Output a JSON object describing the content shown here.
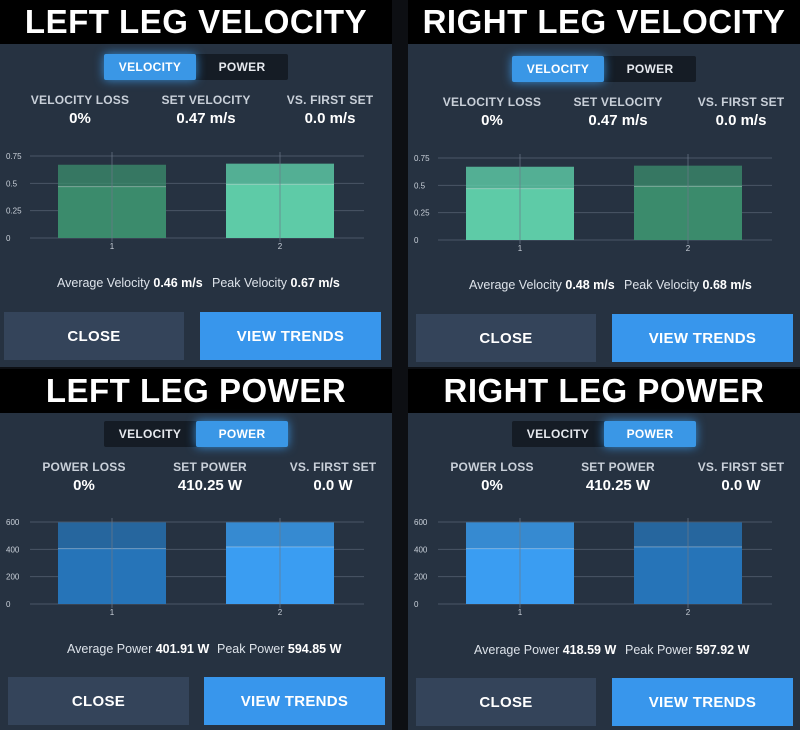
{
  "colors": {
    "panel_bg": "#263241",
    "header_bg": "#000000",
    "accent_blue": "#3a97e6",
    "velocity_bar": "#5ecba7",
    "velocity_bar_dim": "#3b8b6c",
    "power_bar": "#3a9df2",
    "power_bar_dim": "#2674b8"
  },
  "panels": [
    {
      "title": "LEFT LEG VELOCITY",
      "toggle": {
        "velocity": "VELOCITY",
        "power": "POWER",
        "active": "velocity"
      },
      "stats": [
        {
          "label": "VELOCITY LOSS",
          "value": "0%"
        },
        {
          "label": "SET VELOCITY",
          "value": "0.47 m/s"
        },
        {
          "label": "VS. FIRST SET",
          "value": "0.0 m/s"
        }
      ],
      "summary": {
        "avg_label": "Average Velocity",
        "avg_value": "0.46 m/s",
        "peak_label": "Peak Velocity",
        "peak_value": "0.67 m/s"
      },
      "buttons": {
        "close": "CLOSE",
        "trends": "VIEW TRENDS"
      }
    },
    {
      "title": "RIGHT LEG VELOCITY",
      "toggle": {
        "velocity": "VELOCITY",
        "power": "POWER",
        "active": "velocity"
      },
      "stats": [
        {
          "label": "VELOCITY LOSS",
          "value": "0%"
        },
        {
          "label": "SET VELOCITY",
          "value": "0.47 m/s"
        },
        {
          "label": "VS. FIRST SET",
          "value": "0.0 m/s"
        }
      ],
      "summary": {
        "avg_label": "Average Velocity",
        "avg_value": "0.48 m/s",
        "peak_label": "Peak Velocity",
        "peak_value": "0.68 m/s"
      },
      "buttons": {
        "close": "CLOSE",
        "trends": "VIEW TRENDS"
      }
    },
    {
      "title": "LEFT LEG POWER",
      "toggle": {
        "velocity": "VELOCITY",
        "power": "POWER",
        "active": "power"
      },
      "stats": [
        {
          "label": "POWER LOSS",
          "value": "0%"
        },
        {
          "label": "SET POWER",
          "value": "410.25 W"
        },
        {
          "label": "VS. FIRST SET",
          "value": "0.0 W"
        }
      ],
      "summary": {
        "avg_label": "Average Power",
        "avg_value": "401.91 W",
        "peak_label": "Peak Power",
        "peak_value": "594.85 W"
      },
      "buttons": {
        "close": "CLOSE",
        "trends": "VIEW TRENDS"
      }
    },
    {
      "title": "RIGHT LEG POWER",
      "toggle": {
        "velocity": "VELOCITY",
        "power": "POWER",
        "active": "power"
      },
      "stats": [
        {
          "label": "POWER LOSS",
          "value": "0%"
        },
        {
          "label": "SET POWER",
          "value": "410.25 W"
        },
        {
          "label": "VS. FIRST SET",
          "value": "0.0 W"
        }
      ],
      "summary": {
        "avg_label": "Average Power",
        "avg_value": "418.59 W",
        "peak_label": "Peak Power",
        "peak_value": "597.92 W"
      },
      "buttons": {
        "close": "CLOSE",
        "trends": "VIEW TRENDS"
      }
    }
  ],
  "chart_data": [
    {
      "type": "bar",
      "kind": "velocity",
      "categories": [
        "1",
        "2"
      ],
      "series": [
        {
          "name": "Peak Velocity",
          "values": [
            0.67,
            0.68
          ]
        },
        {
          "name": "Average Velocity",
          "values": [
            0.47,
            0.49
          ]
        }
      ],
      "yticks": [
        "0",
        "0.25",
        "0.5",
        "0.75"
      ],
      "ylim": [
        0,
        0.75
      ],
      "highlight": 1
    },
    {
      "type": "bar",
      "kind": "velocity",
      "categories": [
        "1",
        "2"
      ],
      "series": [
        {
          "name": "Peak Velocity",
          "values": [
            0.67,
            0.68
          ]
        },
        {
          "name": "Average Velocity",
          "values": [
            0.47,
            0.49
          ]
        }
      ],
      "yticks": [
        "0",
        "0.25",
        "0.5",
        "0.75"
      ],
      "ylim": [
        0,
        0.75
      ],
      "highlight": 0
    },
    {
      "type": "bar",
      "kind": "power",
      "categories": [
        "1",
        "2"
      ],
      "series": [
        {
          "name": "Peak Power",
          "values": [
            597,
            597
          ]
        },
        {
          "name": "Average Power",
          "values": [
            405,
            418
          ]
        }
      ],
      "yticks": [
        "0",
        "200",
        "400",
        "600"
      ],
      "ylim": [
        0,
        600
      ],
      "highlight": 1
    },
    {
      "type": "bar",
      "kind": "power",
      "categories": [
        "1",
        "2"
      ],
      "series": [
        {
          "name": "Peak Power",
          "values": [
            597,
            597
          ]
        },
        {
          "name": "Average Power",
          "values": [
            405,
            418
          ]
        }
      ],
      "yticks": [
        "0",
        "200",
        "400",
        "600"
      ],
      "ylim": [
        0,
        600
      ],
      "highlight": 0
    }
  ]
}
